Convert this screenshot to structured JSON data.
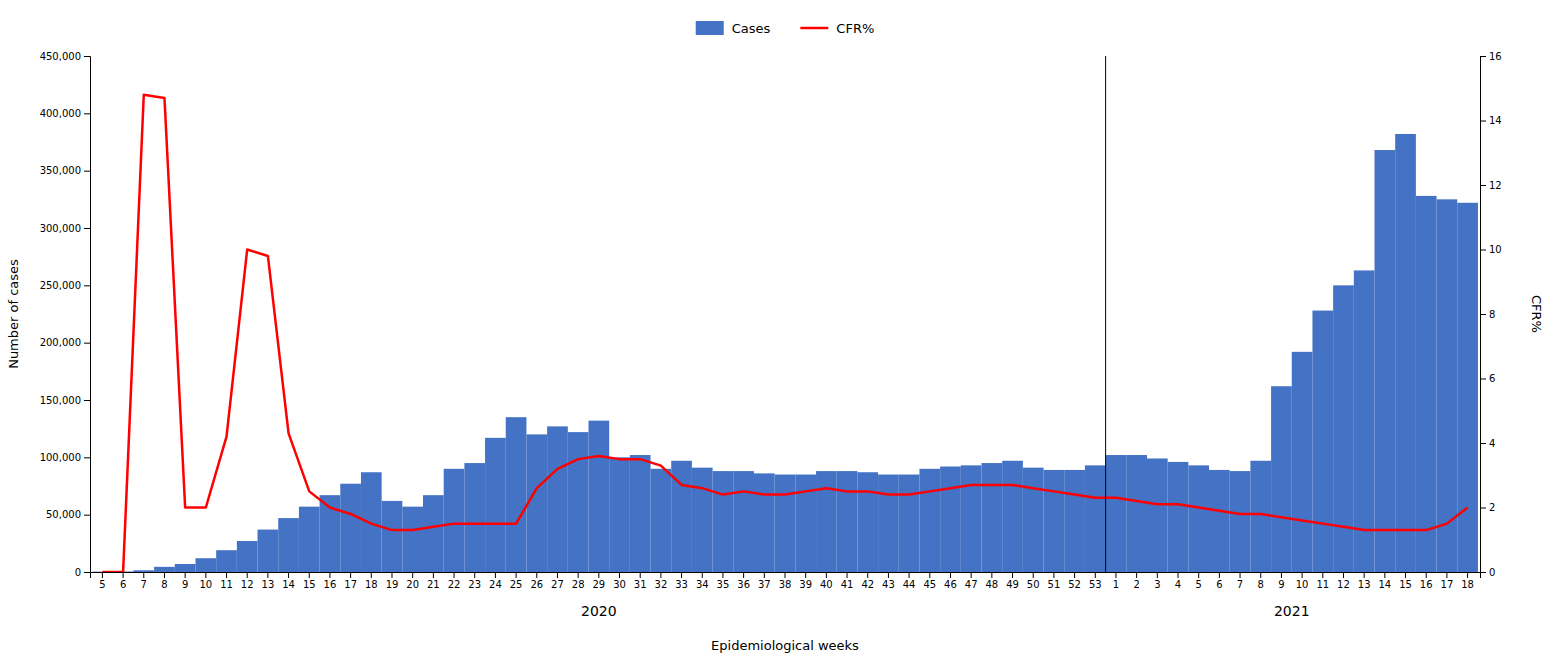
{
  "chart_data": {
    "type": "bar",
    "xlabel": "Epidemiological weeks",
    "ylabel": "Number of cases",
    "y2label": "CFR%",
    "categories": [
      "5",
      "6",
      "7",
      "8",
      "9",
      "10",
      "11",
      "12",
      "13",
      "14",
      "15",
      "16",
      "17",
      "18",
      "19",
      "20",
      "21",
      "22",
      "23",
      "24",
      "25",
      "26",
      "27",
      "28",
      "29",
      "30",
      "31",
      "32",
      "33",
      "34",
      "35",
      "36",
      "37",
      "38",
      "39",
      "40",
      "41",
      "42",
      "43",
      "44",
      "45",
      "46",
      "47",
      "48",
      "49",
      "50",
      "51",
      "52",
      "53",
      "1",
      "2",
      "3",
      "4",
      "5",
      "6",
      "7",
      "8",
      "9",
      "10",
      "11",
      "12",
      "13",
      "14",
      "15",
      "16",
      "17",
      "18"
    ],
    "category_groups": [
      "2020",
      "2020",
      "2020",
      "2020",
      "2020",
      "2020",
      "2020",
      "2020",
      "2020",
      "2020",
      "2020",
      "2020",
      "2020",
      "2020",
      "2020",
      "2020",
      "2020",
      "2020",
      "2020",
      "2020",
      "2020",
      "2020",
      "2020",
      "2020",
      "2020",
      "2020",
      "2020",
      "2020",
      "2020",
      "2020",
      "2020",
      "2020",
      "2020",
      "2020",
      "2020",
      "2020",
      "2020",
      "2020",
      "2020",
      "2020",
      "2020",
      "2020",
      "2020",
      "2020",
      "2020",
      "2020",
      "2020",
      "2020",
      "2020",
      "2021",
      "2021",
      "2021",
      "2021",
      "2021",
      "2021",
      "2021",
      "2021",
      "2021",
      "2021",
      "2021",
      "2021",
      "2021",
      "2021",
      "2021",
      "2021",
      "2021",
      "2021"
    ],
    "series": [
      {
        "name": "Cases",
        "type": "bar",
        "color": "#4472C4",
        "values": [
          300,
          500,
          1500,
          4500,
          7000,
          12000,
          19000,
          27000,
          37000,
          47000,
          57000,
          67000,
          77000,
          87000,
          62000,
          57000,
          67000,
          90000,
          95000,
          117000,
          135000,
          120000,
          127000,
          122000,
          132000,
          100000,
          102000,
          90000,
          97000,
          91000,
          88000,
          88000,
          86000,
          85000,
          85000,
          88000,
          88000,
          87000,
          85000,
          85000,
          90000,
          92000,
          93000,
          95000,
          97000,
          91000,
          89000,
          89000,
          93000,
          102000,
          102000,
          99000,
          96000,
          93000,
          89000,
          88000,
          97000,
          162000,
          192000,
          228000,
          250000,
          263000,
          368000,
          382000,
          328000,
          325000,
          322000
        ]
      },
      {
        "name": "CFR%",
        "type": "line",
        "color": "#FF0000",
        "axis": "y2",
        "values": [
          0.0,
          0.0,
          14.8,
          14.7,
          2.0,
          2.0,
          4.2,
          10.0,
          9.8,
          4.3,
          2.5,
          2.0,
          1.8,
          1.5,
          1.3,
          1.3,
          1.4,
          1.5,
          1.5,
          1.5,
          1.5,
          2.6,
          3.2,
          3.5,
          3.6,
          3.5,
          3.5,
          3.3,
          2.7,
          2.6,
          2.4,
          2.5,
          2.4,
          2.4,
          2.5,
          2.6,
          2.5,
          2.5,
          2.4,
          2.4,
          2.5,
          2.6,
          2.7,
          2.7,
          2.7,
          2.6,
          2.5,
          2.4,
          2.3,
          2.3,
          2.2,
          2.1,
          2.1,
          2.0,
          1.9,
          1.8,
          1.8,
          1.7,
          1.6,
          1.5,
          1.4,
          1.3,
          1.3,
          1.3,
          1.3,
          1.5,
          2.0
        ]
      }
    ],
    "ylim": [
      0,
      450000
    ],
    "yticks": [
      0,
      {
        "value": 50000,
        "label": "50,000"
      },
      {
        "value": 100000,
        "label": "100,000"
      },
      {
        "value": 150000,
        "label": "150,000"
      },
      {
        "value": 200000,
        "label": "200,000"
      },
      {
        "value": 250000,
        "label": "250,000"
      },
      {
        "value": 300000,
        "label": "300,000"
      },
      {
        "value": 350000,
        "label": "350,000"
      },
      {
        "value": 400000,
        "label": "400,000"
      },
      {
        "value": 450000,
        "label": "450,000"
      }
    ],
    "y2lim": [
      0,
      16
    ],
    "y2ticks": [
      0,
      2,
      4,
      6,
      8,
      10,
      12,
      14,
      16
    ],
    "grid": false,
    "legend": "top"
  }
}
